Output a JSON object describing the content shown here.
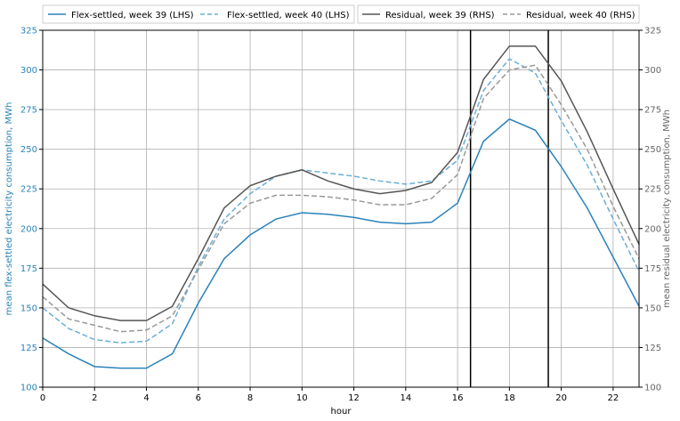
{
  "chart_data": {
    "type": "line",
    "xlabel": "hour",
    "ylabel_left": "mean flex-settled electricity consumption, MWh",
    "ylabel_right": "mean residual electricity consumption, MWh",
    "xlim": [
      0,
      23
    ],
    "ylim_left": [
      100,
      325
    ],
    "ylim_right": [
      100,
      325
    ],
    "xticks": [
      0,
      2,
      4,
      6,
      8,
      10,
      12,
      14,
      16,
      18,
      20,
      22
    ],
    "yticks_left": [
      100,
      125,
      150,
      175,
      200,
      225,
      250,
      275,
      300,
      325
    ],
    "yticks_right": [
      100,
      125,
      150,
      175,
      200,
      225,
      250,
      275,
      300,
      325
    ],
    "grid": true,
    "vlines": [
      16.5,
      19.5
    ],
    "x": [
      0,
      1,
      2,
      3,
      4,
      5,
      6,
      7,
      8,
      9,
      10,
      11,
      12,
      13,
      14,
      15,
      16,
      17,
      18,
      19,
      20,
      21,
      22,
      23
    ],
    "series": [
      {
        "name": "Flex-settled, week 39 (LHS)",
        "axis": "left",
        "color": "#2b83ba",
        "dash": "solid",
        "values": [
          131,
          121,
          113,
          112,
          112,
          121,
          153,
          181,
          196,
          206,
          210,
          209,
          207,
          204,
          203,
          204,
          216,
          255,
          269,
          262,
          239,
          213,
          182,
          151
        ]
      },
      {
        "name": "Flex-settled, week 40 (LHS)",
        "axis": "left",
        "color": "#6baed6",
        "dash": "dashed",
        "values": [
          150,
          137,
          130,
          128,
          129,
          140,
          176,
          206,
          222,
          233,
          237,
          235,
          233,
          230,
          228,
          230,
          243,
          287,
          307,
          298,
          268,
          240,
          206,
          173
        ]
      },
      {
        "name": "Residual, week 39 (RHS)",
        "axis": "right",
        "color": "#555555",
        "dash": "solid",
        "values": [
          165,
          150,
          145,
          142,
          142,
          151,
          181,
          213,
          227,
          233,
          237,
          230,
          225,
          222,
          224,
          229,
          248,
          294,
          315,
          315,
          293,
          261,
          225,
          190
        ]
      },
      {
        "name": "Residual, week 40 (RHS)",
        "axis": "right",
        "color": "#999999",
        "dash": "dashed",
        "values": [
          157,
          143,
          139,
          135,
          136,
          145,
          174,
          203,
          216,
          221,
          221,
          220,
          218,
          215,
          215,
          219,
          234,
          282,
          300,
          303,
          278,
          250,
          214,
          181
        ]
      }
    ]
  }
}
